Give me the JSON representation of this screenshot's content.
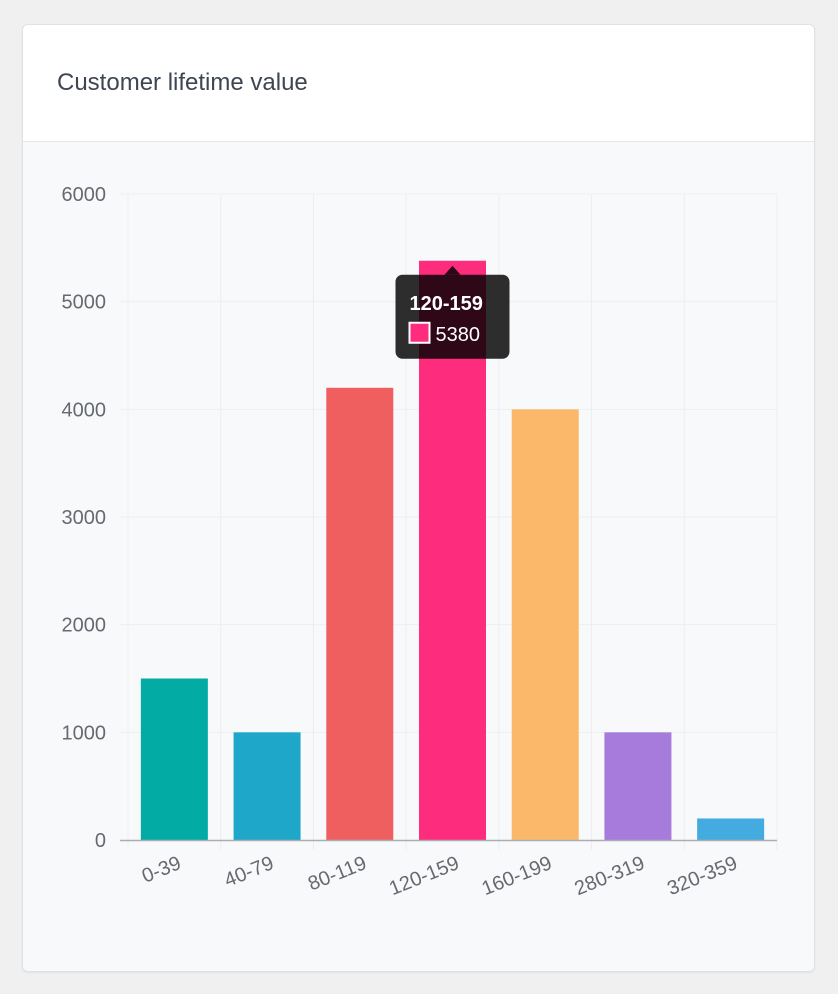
{
  "card": {
    "title": "Customer lifetime value"
  },
  "chart_data": {
    "type": "bar",
    "categories": [
      "0-39",
      "40-79",
      "80-119",
      "120-159",
      "160-199",
      "280-319",
      "320-359"
    ],
    "values": [
      1500,
      1000,
      4200,
      5380,
      4000,
      1000,
      200
    ],
    "colors": [
      "#02aba3",
      "#1ea7c9",
      "#ef5f5f",
      "#fe2c7d",
      "#fbb86a",
      "#a67bdc",
      "#43abdf"
    ],
    "ylim": [
      0,
      6000
    ],
    "yticks": [
      0,
      1000,
      2000,
      3000,
      4000,
      5000,
      6000
    ],
    "grid": true,
    "tooltip": {
      "category": "120-159",
      "value": "5380",
      "color": "#fe2c7d"
    }
  }
}
